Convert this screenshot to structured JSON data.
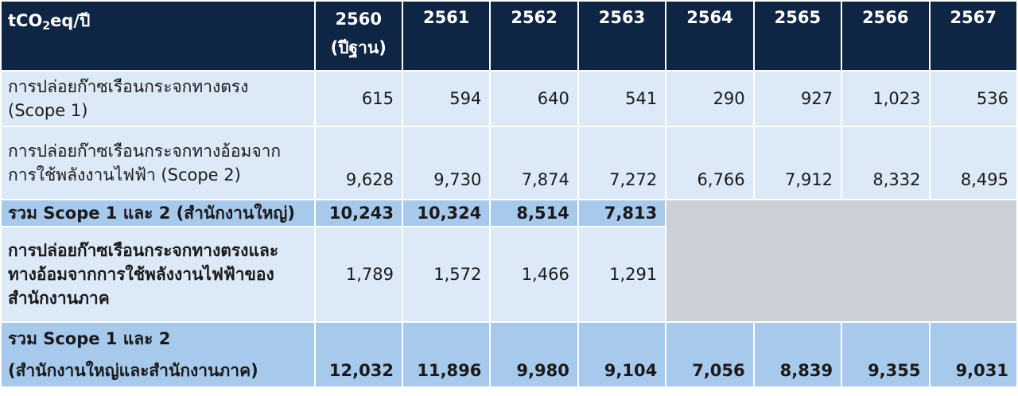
{
  "header": {
    "unit_main": "tCO",
    "unit_sub": "2",
    "unit_rest": "eq/ปี",
    "years": [
      "2560",
      "2561",
      "2562",
      "2563",
      "2564",
      "2565",
      "2566",
      "2567"
    ],
    "base_note": "(ปีฐาน)"
  },
  "rows": [
    {
      "label_lines": [
        "การปล่อยก๊าซเรือนกระจกทางตรง",
        "(Scope 1)"
      ],
      "values": [
        "615",
        "594",
        "640",
        "541",
        "290",
        "927",
        "1,023",
        "536"
      ]
    },
    {
      "label_lines": [
        "การปล่อยก๊าซเรือนกระจกทางอ้อมจาก",
        "การใช้พลังงานไฟฟ้า (Scope 2)"
      ],
      "values": [
        "9,628",
        "9,730",
        "7,874",
        "7,272",
        "6,766",
        "7,912",
        "8,332",
        "8,495"
      ]
    },
    {
      "label_lines": [
        "รวม Scope 1 และ 2  (สำนักงานใหญ่)"
      ],
      "values": [
        "10,243",
        "10,324",
        "8,514",
        "7,813"
      ]
    },
    {
      "label_lines": [
        "การปล่อยก๊าซเรือนกระจกทางตรงและ",
        "ทางอ้อมจากการใช้พลังงานไฟฟ้าของ",
        "สำนักงานภาค"
      ],
      "values": [
        "1,789",
        "1,572",
        "1,466",
        "1,291"
      ]
    },
    {
      "label_lines": [
        "รวม Scope 1 และ 2",
        "(สำนักงานใหญ่และสำนักงานภาค)"
      ],
      "values": [
        "12,032",
        "11,896",
        "9,980",
        "9,104",
        "7,056",
        "8,839",
        "9,355",
        "9,031"
      ]
    }
  ]
}
